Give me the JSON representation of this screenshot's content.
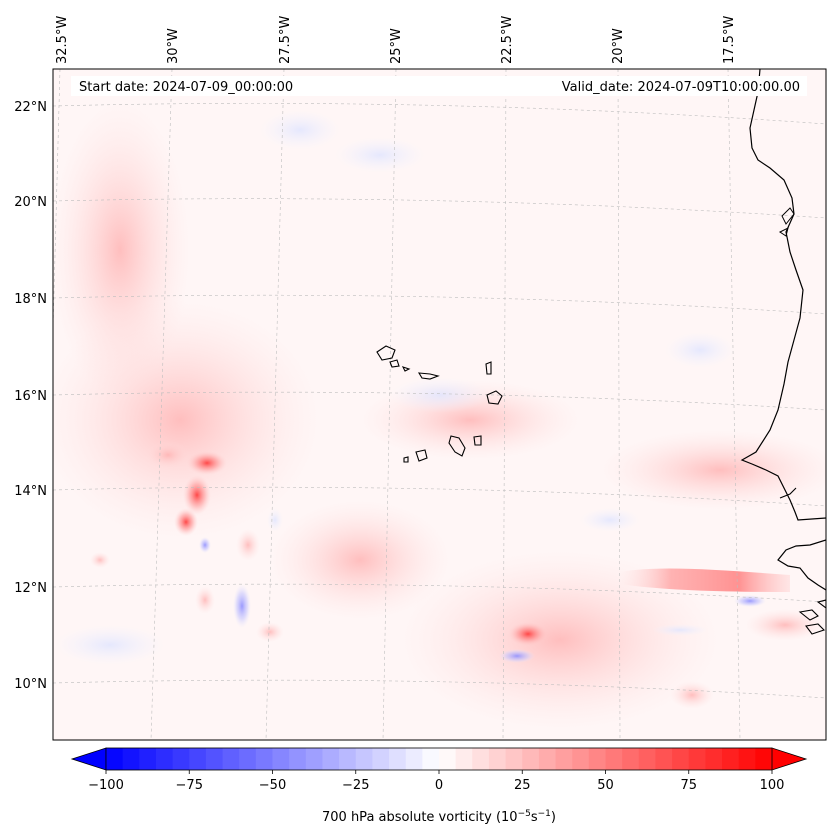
{
  "map": {
    "start_date": "Start date: 2024-07-09_00:00:00",
    "valid_date": "Valid_date: 2024-07-09T10:00:00.00",
    "lon_labels": [
      "32.5°W",
      "30°W",
      "27.5°W",
      "25°W",
      "22.5°W",
      "20°W",
      "17.5°W"
    ],
    "lat_labels": [
      "22°N",
      "20°N",
      "18°N",
      "16°N",
      "14°N",
      "12°N",
      "10°N"
    ],
    "colorbar": {
      "label_prefix": "700 hPa absolute vorticity (10",
      "label_exp1": "−5",
      "label_mid": "s",
      "label_exp2": "−1",
      "label_suffix": ")",
      "ticks": [
        "−100",
        "−75",
        "−50",
        "−25",
        "0",
        "25",
        "50",
        "75",
        "100"
      ],
      "min": -100,
      "max": 100,
      "levels": 41,
      "color_low": "#0000ff",
      "color_mid": "#ffffff",
      "color_high": "#ff0000"
    },
    "colors": {
      "background_field": "#fff6f6",
      "coast": "#000000",
      "grid": "#bdbdbd"
    }
  }
}
